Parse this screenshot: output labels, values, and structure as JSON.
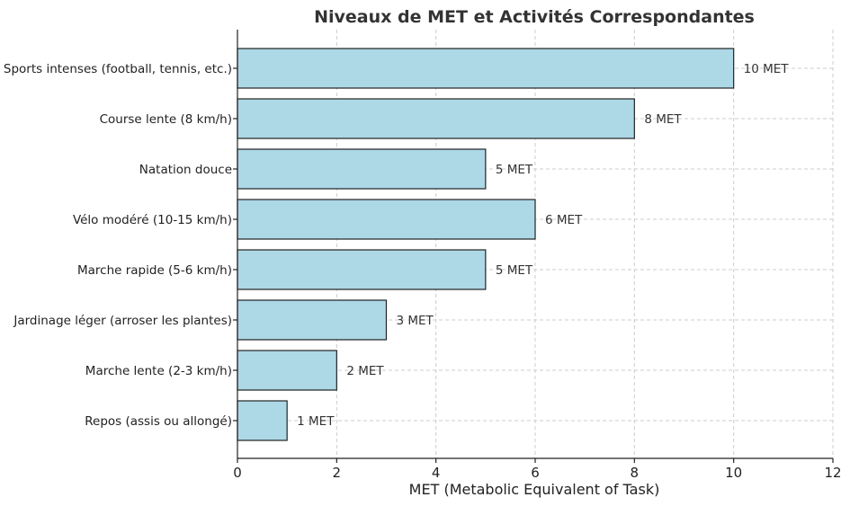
{
  "chart_data": {
    "type": "bar",
    "orientation": "horizontal",
    "title": "Niveaux de MET et Activités Correspondantes",
    "xlabel": "MET (Metabolic Equivalent of Task)",
    "ylabel": "",
    "xlim": [
      0,
      12
    ],
    "xticks": [
      0,
      2,
      4,
      6,
      8,
      10,
      12
    ],
    "grid": true,
    "bar_color": "#add8e6",
    "bar_edge_color": "#222222",
    "categories": [
      "Repos (assis ou allongé)",
      "Marche lente (2-3 km/h)",
      "Jardinage léger (arroser les plantes)",
      "Marche rapide (5-6 km/h)",
      "Vélo modéré (10-15 km/h)",
      "Natation douce",
      "Course lente (8 km/h)",
      "Sports intenses (football, tennis, etc.)"
    ],
    "values": [
      1,
      2,
      3,
      5,
      6,
      5,
      8,
      10
    ],
    "value_labels": [
      "1 MET",
      "2 MET",
      "3 MET",
      "5 MET",
      "6 MET",
      "5 MET",
      "8 MET",
      "10 MET"
    ]
  }
}
